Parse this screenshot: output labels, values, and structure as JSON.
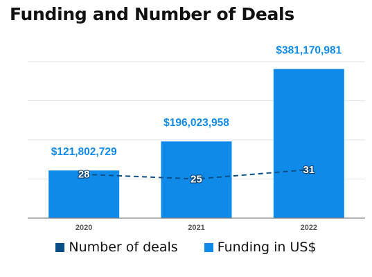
{
  "chart_data": {
    "type": "bar",
    "title": "Funding and Number of Deals",
    "categories": [
      "2020",
      "2021",
      "2022"
    ],
    "series": [
      {
        "name": "Funding in US$",
        "kind": "bar",
        "axis": "left",
        "values": [
          121802729,
          196023958,
          381170981
        ],
        "labels": [
          "$121,802,729",
          "$196,023,958",
          "$381,170,981"
        ],
        "color": "#0F8AE8"
      },
      {
        "name": "Number of deals",
        "kind": "line",
        "line_style": "dashed",
        "axis": "right",
        "values": [
          28,
          25,
          31
        ],
        "labels": [
          "28",
          "25",
          "31"
        ],
        "color": "#0A4E86"
      }
    ],
    "ylim": [
      0,
      400000000
    ],
    "y2lim": [
      0,
      100
    ],
    "grid": true,
    "legend": "bottom-center",
    "label_color": "#0F8AE8"
  }
}
